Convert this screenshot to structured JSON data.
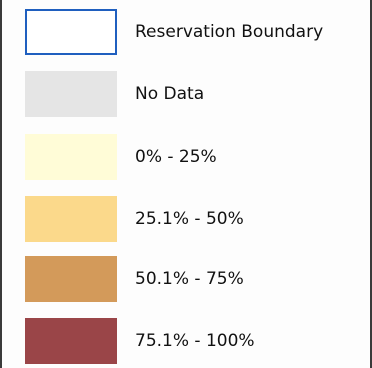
{
  "legend": {
    "items": [
      {
        "label": "Reservation Boundary",
        "fill": "#ffffff",
        "stroke": "#1f5fbf"
      },
      {
        "label": "No Data",
        "fill": "#e5e5e5",
        "stroke": "#e5e5e5"
      },
      {
        "label": "0% - 25%",
        "fill": "#fffcd7",
        "stroke": "#fffcd7"
      },
      {
        "label": "25.1% - 50%",
        "fill": "#fbd98b",
        "stroke": "#fbd98b"
      },
      {
        "label": "50.1% - 75%",
        "fill": "#d39a5a",
        "stroke": "#d39a5a"
      },
      {
        "label": "75.1% - 100%",
        "fill": "#9a4548",
        "stroke": "#9a4548"
      }
    ]
  }
}
